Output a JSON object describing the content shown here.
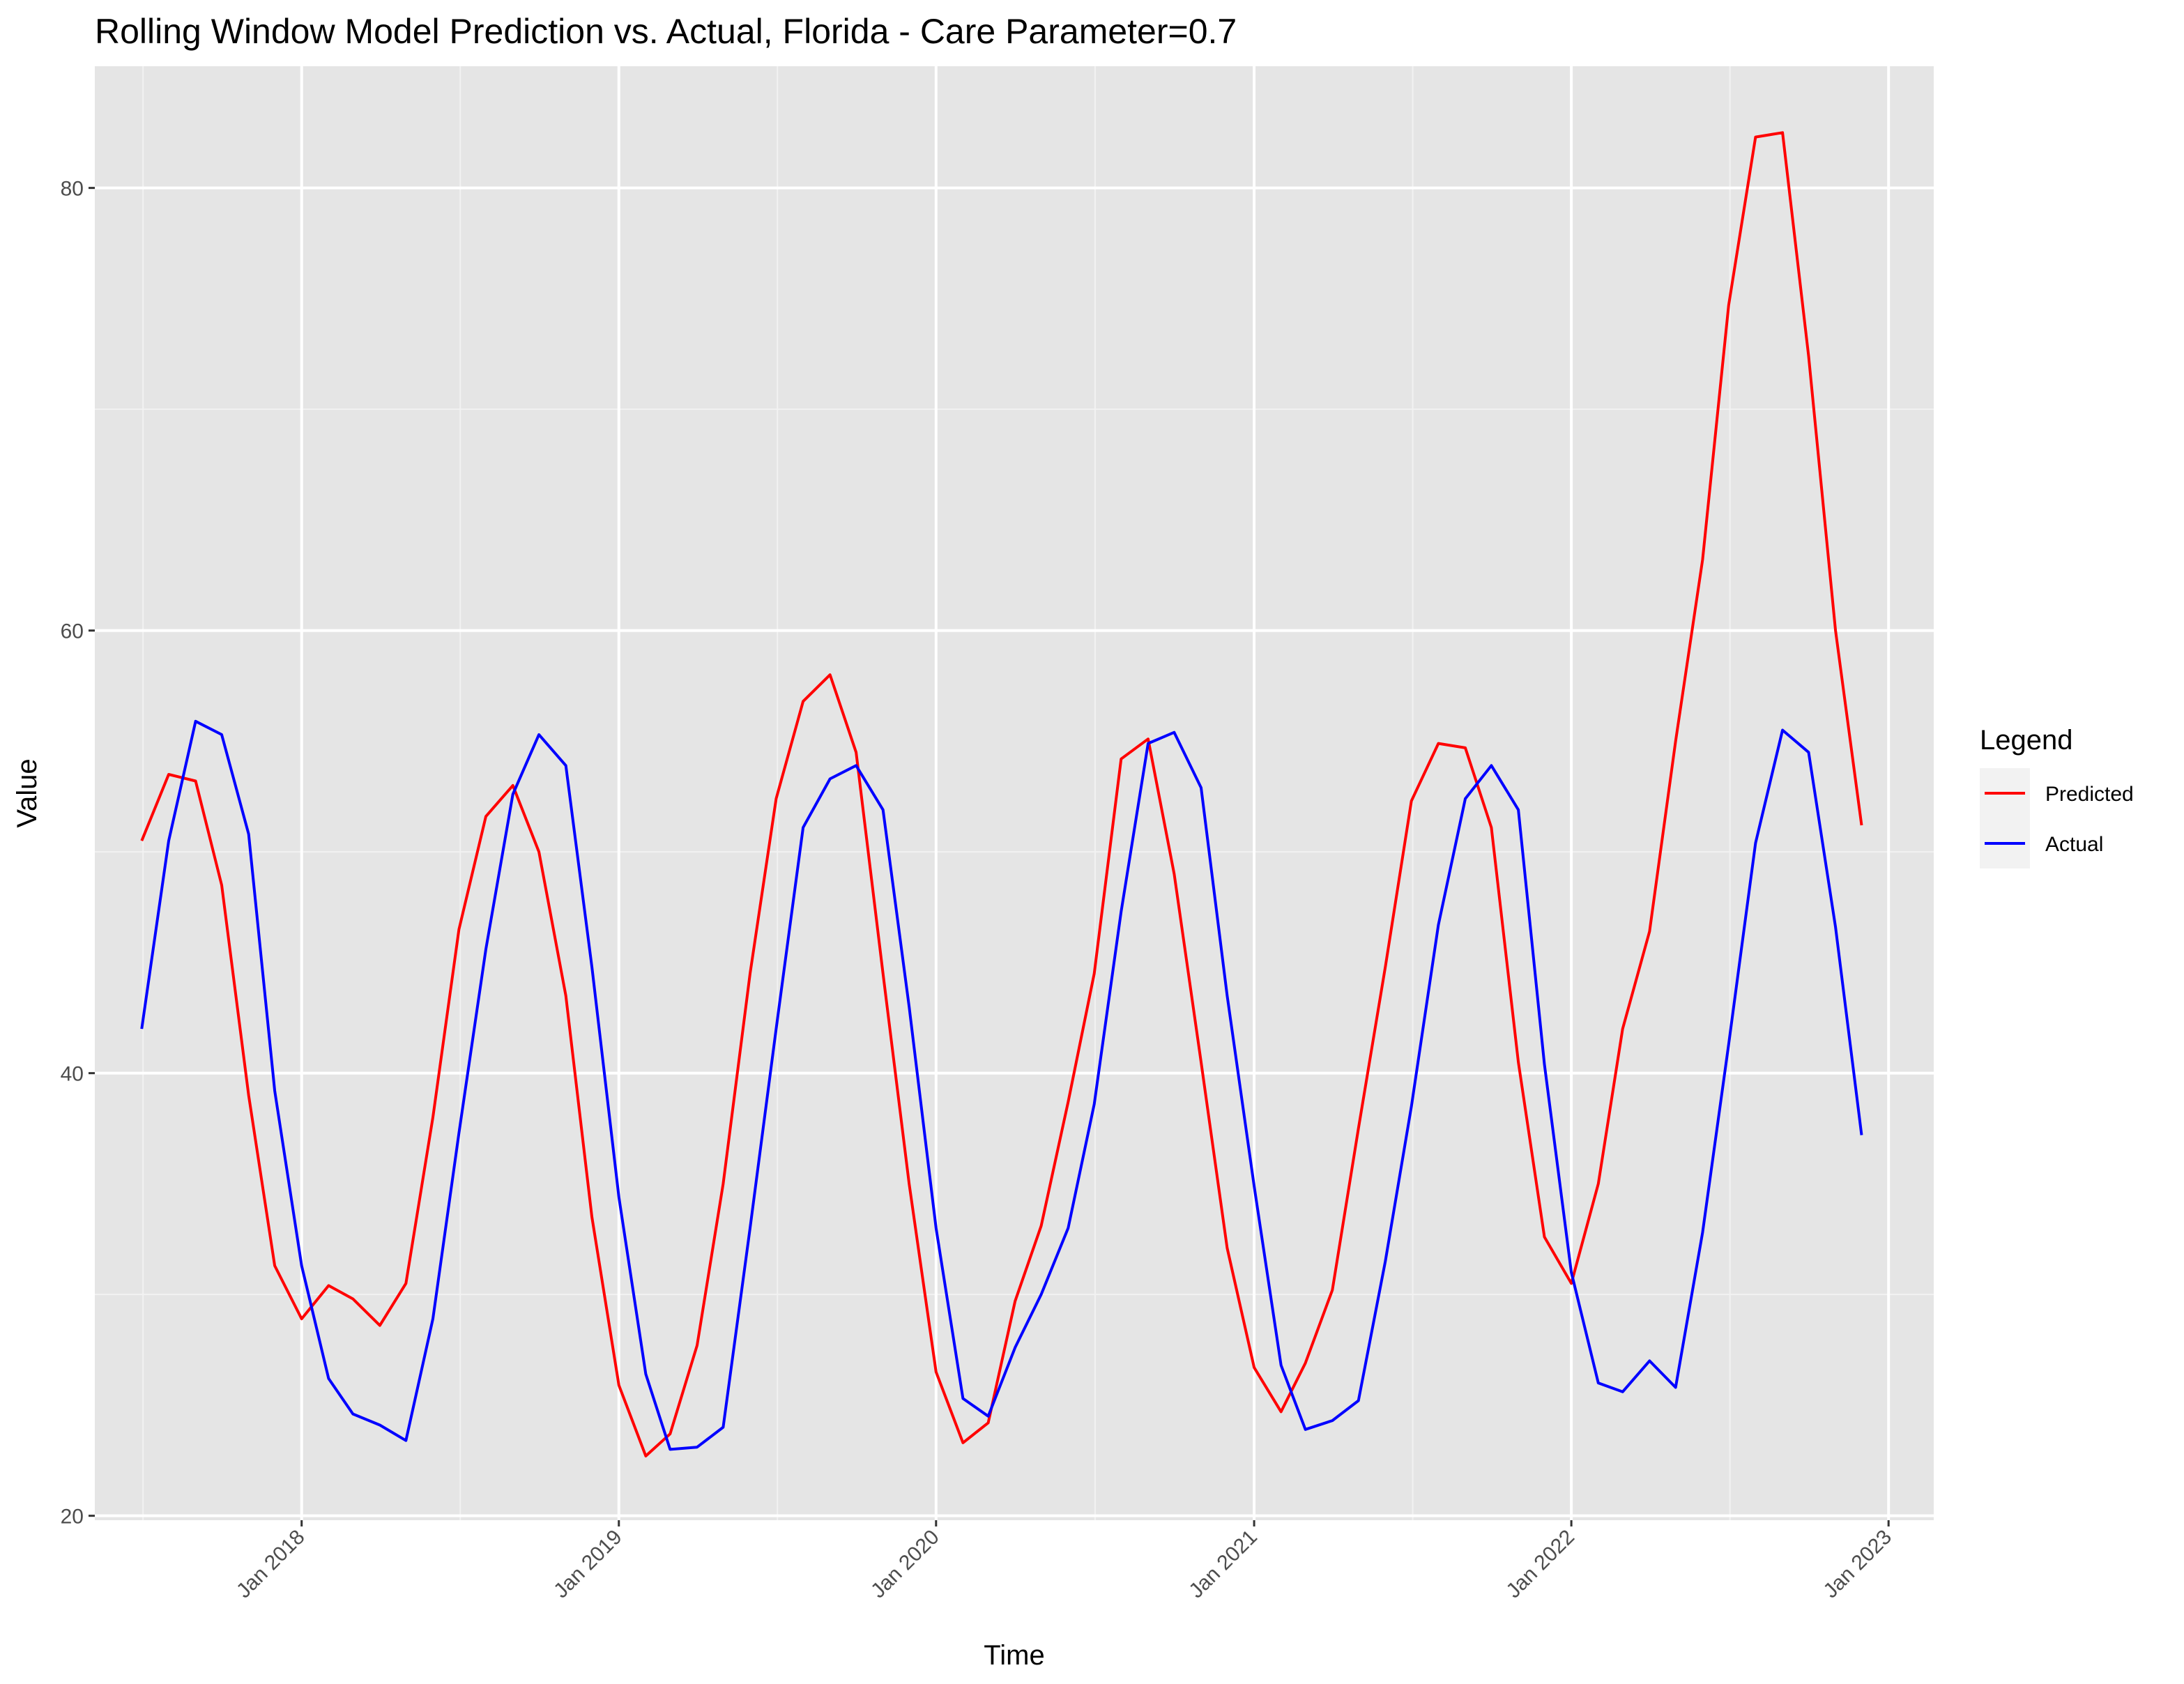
{
  "chart_data": {
    "type": "line",
    "title": "Rolling Window Model Prediction vs. Actual, Florida - Care Parameter=0.7",
    "xlabel": "Time",
    "ylabel": "Value",
    "x_ticks": [
      "Jan 2018",
      "Jan 2019",
      "Jan 2020",
      "Jan 2021",
      "Jan 2022",
      "Jan 2023"
    ],
    "y_ticks": [
      20,
      40,
      60,
      80
    ],
    "xlim": [
      "2017-05-08",
      "2023-02-22"
    ],
    "ylim": [
      19.8,
      85.5
    ],
    "grid": true,
    "legend": {
      "title": "Legend",
      "placement": "right"
    },
    "x": [
      "2017-07-01",
      "2017-08-01",
      "2017-09-01",
      "2017-10-01",
      "2017-11-01",
      "2017-12-01",
      "2018-01-01",
      "2018-02-01",
      "2018-03-01",
      "2018-04-01",
      "2018-05-01",
      "2018-06-01",
      "2018-07-01",
      "2018-08-01",
      "2018-09-01",
      "2018-10-01",
      "2018-11-01",
      "2018-12-01",
      "2019-01-01",
      "2019-02-01",
      "2019-03-01",
      "2019-04-01",
      "2019-05-01",
      "2019-06-01",
      "2019-07-01",
      "2019-08-01",
      "2019-09-01",
      "2019-10-01",
      "2019-11-01",
      "2019-12-01",
      "2020-01-01",
      "2020-02-01",
      "2020-03-01",
      "2020-04-01",
      "2020-05-01",
      "2020-06-01",
      "2020-07-01",
      "2020-08-01",
      "2020-09-01",
      "2020-10-01",
      "2020-11-01",
      "2020-12-01",
      "2021-01-01",
      "2021-02-01",
      "2021-03-01",
      "2021-04-01",
      "2021-05-01",
      "2021-06-01",
      "2021-07-01",
      "2021-08-01",
      "2021-09-01",
      "2021-10-01",
      "2021-11-01",
      "2021-12-01",
      "2022-01-01",
      "2022-02-01",
      "2022-03-01",
      "2022-04-01",
      "2022-05-01",
      "2022-06-01",
      "2022-07-01",
      "2022-08-01",
      "2022-09-01",
      "2022-10-01",
      "2022-11-01",
      "2022-12-01"
    ],
    "series": [
      {
        "name": "Predicted",
        "color": "#ff0000",
        "values": [
          50.5,
          53.5,
          53.2,
          48.5,
          39.0,
          31.3,
          28.9,
          30.4,
          29.8,
          28.6,
          30.5,
          38.0,
          46.5,
          51.6,
          53.0,
          50.0,
          43.5,
          33.5,
          25.9,
          22.7,
          23.7,
          27.7,
          35.0,
          44.5,
          52.4,
          56.8,
          58.0,
          54.5,
          44.5,
          35.0,
          26.5,
          23.3,
          24.2,
          29.7,
          33.1,
          38.7,
          44.5,
          54.2,
          55.1,
          49.0,
          40.5,
          32.1,
          26.7,
          24.7,
          26.9,
          30.2,
          37.5,
          44.8,
          52.3,
          54.9,
          54.7,
          51.1,
          40.5,
          32.6,
          30.5,
          35.0,
          42.0,
          46.4,
          55.0,
          63.2,
          74.7,
          82.3,
          82.5,
          72.4,
          60.0,
          51.2
        ]
      },
      {
        "name": "Actual",
        "color": "#0000ff",
        "values": [
          42.0,
          50.5,
          55.9,
          55.3,
          50.8,
          39.2,
          31.3,
          26.2,
          24.6,
          24.1,
          23.4,
          28.9,
          37.3,
          45.6,
          52.6,
          55.3,
          53.9,
          44.8,
          34.4,
          26.4,
          23.0,
          23.1,
          24.0,
          33.0,
          42.0,
          51.1,
          53.3,
          53.9,
          51.9,
          43.0,
          33.0,
          25.3,
          24.5,
          27.6,
          30.0,
          33.0,
          38.6,
          47.3,
          54.9,
          55.4,
          52.9,
          43.5,
          34.9,
          26.8,
          23.9,
          24.3,
          25.2,
          31.5,
          38.5,
          46.7,
          52.4,
          53.9,
          51.9,
          40.4,
          31.0,
          26.0,
          25.6,
          27.0,
          25.8,
          32.8,
          41.3,
          50.4,
          55.5,
          54.5,
          46.6,
          37.2
        ]
      }
    ]
  }
}
